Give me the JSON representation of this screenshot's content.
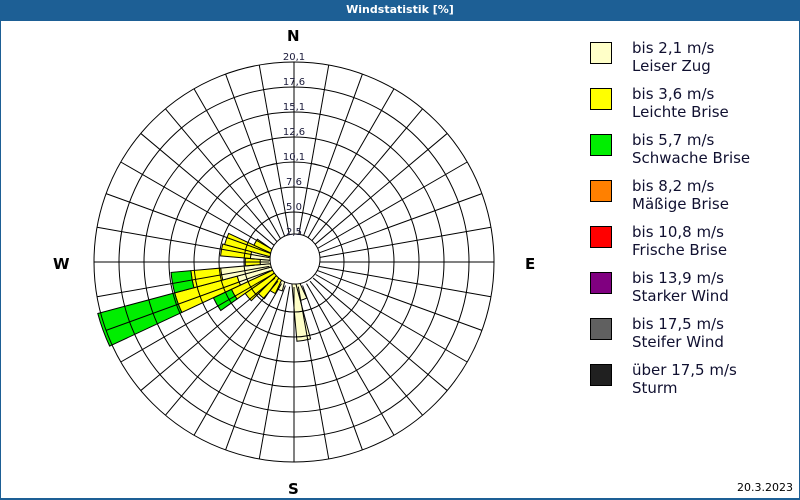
{
  "window": {
    "title": "Windstatistik [%]"
  },
  "footer": {
    "date": "20.3.2023"
  },
  "compass": {
    "n": "N",
    "e": "E",
    "s": "S",
    "w": "W"
  },
  "legend": [
    {
      "range": "bis 2,1 m/s",
      "name": "Leiser Zug",
      "color": "#ffffc8"
    },
    {
      "range": "bis 3,6 m/s",
      "name": "Leichte Brise",
      "color": "#ffff00"
    },
    {
      "range": "bis 5,7 m/s",
      "name": "Schwache Brise",
      "color": "#00ee00"
    },
    {
      "range": "bis 8,2 m/s",
      "name": "Mäßige Brise",
      "color": "#ff8000"
    },
    {
      "range": "bis 10,8 m/s",
      "name": "Frische Brise",
      "color": "#ff0000"
    },
    {
      "range": "bis 13,9 m/s",
      "name": "Starker Wind",
      "color": "#800080"
    },
    {
      "range": "bis 17,5 m/s",
      "name": "Steifer Wind",
      "color": "#606060"
    },
    {
      "range": "über 17,5 m/s",
      "name": "Sturm",
      "color": "#202020"
    }
  ],
  "chart_data": {
    "type": "wind-rose",
    "title": "Windstatistik [%]",
    "radial_ticks": [
      "2,5",
      "5,0",
      "7,6",
      "10,1",
      "12,6",
      "15,1",
      "17,6",
      "20,1"
    ],
    "rmax": 20.1,
    "sector_width_deg": 10,
    "series_names": [
      "bis 2,1 m/s",
      "bis 3,6 m/s",
      "bis 5,7 m/s",
      "bis 8,2 m/s",
      "bis 10,8 m/s",
      "bis 13,9 m/s",
      "bis 17,5 m/s",
      "über 17,5 m/s"
    ],
    "sectors": [
      {
        "dir_deg": 160,
        "values": [
          4.0,
          0,
          0,
          0,
          0,
          0,
          0,
          0
        ]
      },
      {
        "dir_deg": 170,
        "values": [
          8.0,
          0,
          0,
          0,
          0,
          0,
          0,
          0
        ]
      },
      {
        "dir_deg": 200,
        "values": [
          3.0,
          0,
          0,
          0,
          0,
          0,
          0,
          0
        ]
      },
      {
        "dir_deg": 210,
        "values": [
          1.5,
          2.0,
          0,
          0,
          0,
          0,
          0,
          0
        ]
      },
      {
        "dir_deg": 220,
        "values": [
          1.5,
          3.0,
          0,
          0,
          0,
          0,
          0,
          0
        ]
      },
      {
        "dir_deg": 230,
        "values": [
          1.5,
          4.0,
          0,
          0,
          0,
          0,
          0,
          0
        ]
      },
      {
        "dir_deg": 240,
        "values": [
          1.5,
          5.0,
          2.0,
          0,
          0,
          0,
          0,
          0
        ]
      },
      {
        "dir_deg": 250,
        "values": [
          5.5,
          6.5,
          8.0,
          0,
          0,
          0,
          0,
          0
        ]
      },
      {
        "dir_deg": 260,
        "values": [
          7.0,
          3.0,
          2.0,
          0,
          0,
          0,
          0,
          0
        ]
      },
      {
        "dir_deg": 270,
        "values": [
          3.0,
          1.5,
          0,
          0,
          0,
          0,
          0,
          0
        ]
      },
      {
        "dir_deg": 280,
        "values": [
          4.0,
          3.0,
          0,
          0,
          0,
          0,
          0,
          0
        ]
      },
      {
        "dir_deg": 290,
        "values": [
          2.0,
          4.8,
          0,
          0,
          0,
          0,
          0,
          0
        ]
      },
      {
        "dir_deg": 300,
        "values": [
          1.0,
          3.0,
          0,
          0,
          0,
          0,
          0,
          0
        ]
      }
    ]
  }
}
